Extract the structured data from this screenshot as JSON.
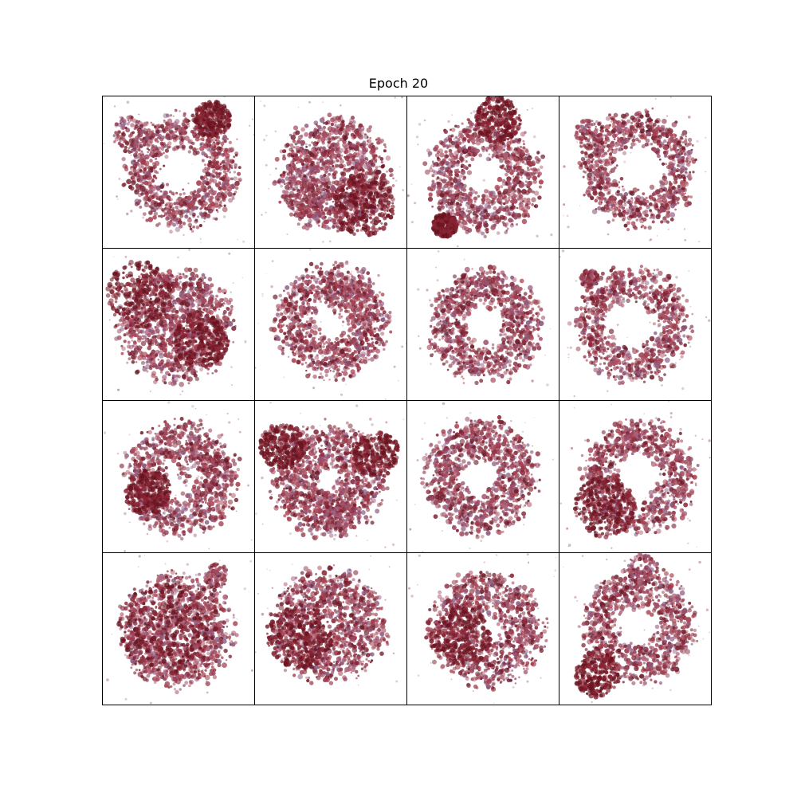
{
  "title": "Epoch 20",
  "grid": {
    "rows": 4,
    "cols": 4,
    "samples": [
      {
        "shape": "ring",
        "seed": 11,
        "hole": 0.45,
        "blobs": [
          [
            0.72,
            0.15,
            0.12
          ]
        ],
        "lobes": [
          [
            0.18,
            0.25,
            0.12
          ]
        ]
      },
      {
        "shape": "blob",
        "seed": 23,
        "hole": 0,
        "blobs": [
          [
            0.72,
            0.72,
            0.2
          ]
        ],
        "lobes": [
          [
            0.35,
            0.65,
            0.15
          ]
        ]
      },
      {
        "shape": "ring",
        "seed": 37,
        "hole": 0.35,
        "blobs": [
          [
            0.6,
            0.15,
            0.15
          ],
          [
            0.25,
            0.85,
            0.08
          ]
        ],
        "lobes": []
      },
      {
        "shape": "ring",
        "seed": 41,
        "hole": 0.5,
        "blobs": [],
        "lobes": [
          [
            0.2,
            0.25,
            0.1
          ]
        ]
      },
      {
        "shape": "blob",
        "seed": 53,
        "hole": 0,
        "blobs": [
          [
            0.25,
            0.3,
            0.22
          ],
          [
            0.65,
            0.6,
            0.18
          ]
        ],
        "lobes": []
      },
      {
        "shape": "ring",
        "seed": 61,
        "hole": 0.35,
        "blobs": [],
        "lobes": [
          [
            0.65,
            0.35,
            0.15
          ]
        ]
      },
      {
        "shape": "ring",
        "seed": 73,
        "hole": 0.4,
        "blobs": [],
        "lobes": []
      },
      {
        "shape": "ring",
        "seed": 83,
        "hole": 0.5,
        "blobs": [],
        "lobes": [
          [
            0.2,
            0.2,
            0.06
          ]
        ]
      },
      {
        "shape": "ring",
        "seed": 97,
        "hole": 0.35,
        "blobs": [
          [
            0.3,
            0.6,
            0.15
          ]
        ],
        "lobes": [
          [
            0.65,
            0.4,
            0.18
          ]
        ]
      },
      {
        "shape": "blob",
        "seed": 101,
        "hole": 0.2,
        "blobs": [
          [
            0.18,
            0.3,
            0.15
          ],
          [
            0.8,
            0.35,
            0.15
          ]
        ],
        "lobes": [
          [
            0.55,
            0.75,
            0.1
          ]
        ]
      },
      {
        "shape": "ring",
        "seed": 113,
        "hole": 0.35,
        "blobs": [],
        "lobes": []
      },
      {
        "shape": "ring",
        "seed": 127,
        "hole": 0.45,
        "blobs": [
          [
            0.3,
            0.7,
            0.2
          ]
        ],
        "lobes": []
      },
      {
        "shape": "blob",
        "seed": 131,
        "hole": 0.1,
        "blobs": [
          [
            0.4,
            0.5,
            0.3
          ]
        ],
        "lobes": [
          [
            0.75,
            0.15,
            0.08
          ]
        ]
      },
      {
        "shape": "blob",
        "seed": 149,
        "hole": 0.15,
        "blobs": [
          [
            0.3,
            0.55,
            0.22
          ]
        ],
        "lobes": []
      },
      {
        "shape": "ring",
        "seed": 157,
        "hole": 0.25,
        "blobs": [
          [
            0.35,
            0.55,
            0.2
          ]
        ],
        "lobes": []
      },
      {
        "shape": "ring",
        "seed": 163,
        "hole": 0.4,
        "blobs": [
          [
            0.25,
            0.8,
            0.15
          ]
        ],
        "lobes": [
          [
            0.55,
            0.1,
            0.1
          ]
        ]
      }
    ]
  }
}
